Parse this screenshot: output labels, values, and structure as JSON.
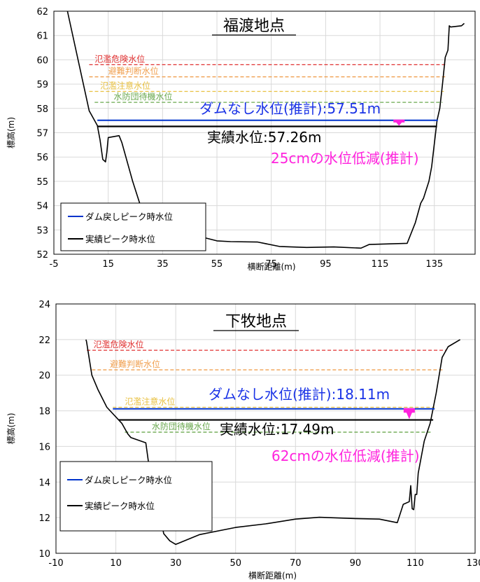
{
  "colors": {
    "grid": "#d9d9d9",
    "terrain": "#000000",
    "dam_line": "#0033cc",
    "actual_line": "#000000",
    "flood_danger": "#e03030",
    "evacuation": "#f0a050",
    "flood_caution": "#e8c040",
    "standby": "#6aa84f",
    "reduction": "#ff22dd",
    "blue_text": "#1a33e6"
  },
  "chart_data": [
    {
      "type": "line",
      "title": "福渡地点",
      "xlabel": "横断距離(m)",
      "ylabel": "標高(m)",
      "xlim": [
        -5,
        150
      ],
      "ylim": [
        52,
        62
      ],
      "xticks": [
        "-5",
        "15",
        "35",
        "55",
        "75",
        "95",
        "115",
        "135"
      ],
      "yticks": [
        "52",
        "53",
        "54",
        "55",
        "56",
        "57",
        "58",
        "59",
        "60",
        "61",
        "62"
      ],
      "grid": true,
      "legend_position": "bottom-left",
      "legend": [
        "ダム戻しピーク時水位",
        "実績ピーク時水位"
      ],
      "terrain": {
        "x": [
          0,
          8,
          11,
          12,
          13,
          13.5,
          14,
          14.5,
          15,
          19,
          20,
          24,
          28,
          40,
          48,
          55,
          60,
          70,
          78,
          88,
          98,
          108,
          111,
          125,
          128,
          130,
          131,
          133,
          134,
          136,
          137,
          138,
          139,
          140,
          140.5,
          141,
          145,
          146
        ],
        "y": [
          62,
          57.9,
          57.3,
          56.7,
          55.9,
          55.85,
          55.8,
          56.2,
          56.8,
          56.88,
          56.6,
          55.0,
          53.6,
          52.9,
          52.75,
          52.55,
          52.52,
          52.5,
          52.32,
          52.28,
          52.3,
          52.25,
          52.4,
          52.45,
          53.3,
          54.1,
          54.3,
          55.0,
          55.6,
          57.5,
          58.0,
          59.0,
          60.1,
          60.4,
          61.4,
          61.35,
          61.4,
          61.5
        ]
      },
      "levels": [
        {
          "label": "氾濫危険水位",
          "value": 59.8,
          "x_start": 8,
          "x_end": 139,
          "label_x": 10,
          "color": "#e03030"
        },
        {
          "label": "避難判断水位",
          "value": 59.3,
          "x_start": 8,
          "x_end": 139,
          "label_x": 15,
          "color": "#f0a050"
        },
        {
          "label": "氾濫注意水位",
          "value": 58.7,
          "x_start": 8,
          "x_end": 138.5,
          "label_x": 12,
          "color": "#e8c040"
        },
        {
          "label": "水防団待機水位",
          "value": 58.25,
          "x_start": 10,
          "x_end": 138,
          "label_x": 17,
          "color": "#6aa84f"
        }
      ],
      "dam_level": {
        "value": 57.51,
        "x_start": 11,
        "x_end": 136.3
      },
      "actual_level": {
        "value": 57.26,
        "x_start": 11,
        "x_end": 136
      },
      "dam_text": "ダムなし水位(推計):57.51m",
      "actual_text": "実績水位:57.26m",
      "reduction_text": "25cmの水位低減(推計)",
      "arrow_x": 122
    },
    {
      "type": "line",
      "title": "下牧地点",
      "xlabel": "横断距離(m)",
      "ylabel": "標高(m)",
      "xlim": [
        -10,
        130
      ],
      "ylim": [
        10,
        24
      ],
      "xticks": [
        "-10",
        "10",
        "30",
        "50",
        "70",
        "90",
        "110",
        "130"
      ],
      "yticks": [
        "10",
        "12",
        "14",
        "16",
        "18",
        "20",
        "22",
        "24"
      ],
      "grid": true,
      "legend_position": "bottom-left",
      "legend": [
        "ダム戻しピーク時水位",
        "実績ピーク時水位"
      ],
      "terrain": {
        "x": [
          0,
          0.2,
          2,
          4,
          7,
          12,
          14,
          15,
          20,
          21,
          26,
          28,
          30,
          38,
          50,
          60,
          70,
          78,
          90,
          98,
          104,
          106,
          108,
          108.5,
          109,
          109.5,
          110,
          110.5,
          111,
          113,
          115,
          117,
          119,
          121,
          122,
          125
        ],
        "y": [
          22,
          21.9,
          20.0,
          19.2,
          18.2,
          17.3,
          16.7,
          16.5,
          16.2,
          15.0,
          11.1,
          10.7,
          10.5,
          11.05,
          11.45,
          11.65,
          11.92,
          12.02,
          11.95,
          11.92,
          11.72,
          12.75,
          12.9,
          13.8,
          12.5,
          12.45,
          13.3,
          13.3,
          14.5,
          16.3,
          17.3,
          19.0,
          21.0,
          21.6,
          21.7,
          22.0
        ]
      },
      "levels": [
        {
          "label": "氾濫危険水位",
          "value": 21.4,
          "x_start": 0.3,
          "x_end": 120.5,
          "label_x": 2.5,
          "color": "#e03030"
        },
        {
          "label": "避難判断水位",
          "value": 20.3,
          "x_start": 2,
          "x_end": 119.5,
          "label_x": 8,
          "color": "#f0a050"
        },
        {
          "label": "氾濫注意水位",
          "value": 18.2,
          "x_start": 9,
          "x_end": 116.5,
          "label_x": 13,
          "color": "#e8c040"
        },
        {
          "label": "水防団待機水位",
          "value": 16.8,
          "x_start": 13,
          "x_end": 115.5,
          "label_x": 22,
          "color": "#6aa84f"
        }
      ],
      "dam_level": {
        "value": 18.11,
        "x_start": 9,
        "x_end": 116.5
      },
      "actual_level": {
        "value": 17.49,
        "x_start": 11,
        "x_end": 116
      },
      "dam_text": "ダムなし水位(推計):18.11m",
      "actual_text": "実績水位:17.49m",
      "reduction_text": "62cmの水位低減(推計)",
      "arrow_x": 108
    }
  ]
}
